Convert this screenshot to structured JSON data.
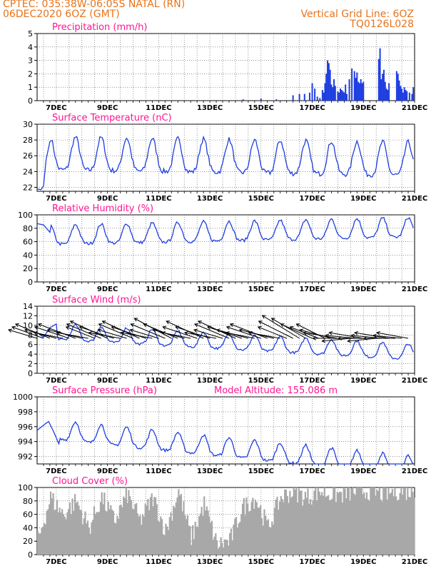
{
  "header": {
    "line1": "CPTEC:   035:38W-06:05S   NATAL (RN)",
    "line2": "06DEC2020 6OZ (GMT)",
    "right1": "Vertical Grid Line: 6OZ",
    "right2": "TQ0126L028"
  },
  "colors": {
    "header": "#e8731a",
    "title": "#ff1493",
    "series": "#1f3ee0",
    "cloud": "#a8a8a8",
    "arrow": "#000000"
  },
  "chart_data": [
    {
      "type": "bar",
      "title": "Precipitation (mm/h)",
      "ylim": [
        0,
        5
      ],
      "yticks": [
        "0",
        "1",
        "2",
        "3",
        "4",
        "5"
      ],
      "xlim": [
        6.25,
        21
      ],
      "xticks": [
        7,
        9,
        11,
        13,
        15,
        17,
        19,
        21
      ],
      "xticklabels": [
        "7DEC",
        "9DEC",
        "11DEC",
        "13DEC",
        "15DEC",
        "17DEC",
        "19DEC",
        "21DEC"
      ],
      "series": [
        {
          "x": [
            14.3,
            15.0,
            15.6,
            16.25,
            16.5,
            16.7,
            16.9,
            17.0,
            17.1,
            17.2,
            17.3,
            17.4,
            17.45,
            17.5,
            17.55,
            17.6,
            17.65,
            17.7,
            17.75,
            17.8,
            17.85,
            17.9,
            18.0,
            18.05,
            18.1,
            18.15,
            18.2,
            18.25,
            18.3,
            18.35,
            18.45,
            18.55,
            18.65,
            18.7,
            18.75,
            18.8,
            18.85,
            18.9,
            18.95,
            19.0,
            19.6,
            19.65,
            19.7,
            19.75,
            19.8,
            19.85,
            19.9,
            19.95,
            20.0,
            20.3,
            20.35,
            20.4,
            20.45,
            20.5,
            20.55,
            20.6,
            20.65,
            20.7,
            20.8,
            20.9,
            20.95
          ],
          "values": [
            0.1,
            0.15,
            0.1,
            0.4,
            0.5,
            0.5,
            0.6,
            1.3,
            0.9,
            0.3,
            0.2,
            0.8,
            0.6,
            1.3,
            2.0,
            3.0,
            2.8,
            2.3,
            1.2,
            1.0,
            1.6,
            1.1,
            0.7,
            0.6,
            0.9,
            0.8,
            0.7,
            0.6,
            1.2,
            0.5,
            1.6,
            2.4,
            2.2,
            1.7,
            2.1,
            1.4,
            1.3,
            1.6,
            1.3,
            1.4,
            3.1,
            3.9,
            1.6,
            2.0,
            2.3,
            1.4,
            0.9,
            0.8,
            1.3,
            2.2,
            2.0,
            1.5,
            1.1,
            0.9,
            0.6,
            1.0,
            0.8,
            0.7,
            0.6,
            0.5,
            1.0
          ]
        }
      ]
    },
    {
      "type": "line",
      "title": "Surface Temperature (nC)",
      "ylim": [
        21.5,
        30
      ],
      "yticks": [
        "22",
        "24",
        "26",
        "28",
        "30"
      ],
      "ytickvals": [
        22,
        24,
        26,
        28,
        30
      ],
      "xlim": [
        6.25,
        21
      ],
      "xticks": [
        7,
        9,
        11,
        13,
        15,
        17,
        19,
        21
      ],
      "xticklabels": [
        "7DEC",
        "9DEC",
        "11DEC",
        "13DEC",
        "15DEC",
        "17DEC",
        "19DEC",
        "21DEC"
      ],
      "series": [
        {
          "base": 25.8,
          "amp": 2.6,
          "trend": -0.05,
          "x": [
            6.25,
            6.4,
            6.5,
            6.6,
            6.75
          ],
          "values": [
            21.8,
            21.7,
            22.2,
            25.5,
            27.8
          ]
        }
      ]
    },
    {
      "type": "line",
      "title": "Relative Humidity (%)",
      "ylim": [
        0,
        100
      ],
      "yticks": [
        "0",
        "20",
        "40",
        "60",
        "80",
        "100"
      ],
      "ytickvals": [
        0,
        20,
        40,
        60,
        80,
        100
      ],
      "xlim": [
        6.25,
        21
      ],
      "xticks": [
        7,
        9,
        11,
        13,
        15,
        17,
        19,
        21
      ],
      "xticklabels": [
        "7DEC",
        "9DEC",
        "11DEC",
        "13DEC",
        "15DEC",
        "17DEC",
        "19DEC",
        "21DEC"
      ],
      "series": [
        {
          "base": 67,
          "amp": 18,
          "trend": 0.8,
          "x": [
            6.25,
            6.5,
            6.75
          ],
          "values": [
            87,
            85,
            74
          ]
        }
      ]
    },
    {
      "type": "line",
      "title": "Surface Wind (m/s)",
      "ylim": [
        0,
        14
      ],
      "yticks": [
        "0",
        "2",
        "4",
        "6",
        "8",
        "10",
        "12",
        "14"
      ],
      "ytickvals": [
        0,
        2,
        4,
        6,
        8,
        10,
        12,
        14
      ],
      "xlim": [
        6.25,
        21
      ],
      "xticks": [
        7,
        9,
        11,
        13,
        15,
        17,
        19,
        21
      ],
      "xticklabels": [
        "7DEC",
        "9DEC",
        "11DEC",
        "13DEC",
        "15DEC",
        "17DEC",
        "19DEC",
        "21DEC"
      ],
      "series": [
        {
          "base": 8.3,
          "amp": 2.0,
          "trend": -0.3,
          "x": [
            6.25,
            6.5,
            6.75,
            7.0
          ],
          "values": [
            8.5,
            7.5,
            9.5,
            10.3
          ]
        }
      ],
      "vectors": {
        "start": 6.25,
        "step": 0.25,
        "u": [
          -1.0,
          -1.1,
          -1.2,
          -1.1,
          -1.0,
          -1.2,
          -1.3,
          -1.2,
          -1.1,
          -1.0,
          -1.2,
          -1.3,
          -1.2,
          -1.1,
          -1.0,
          -1.2,
          -1.3,
          -1.2,
          -1.1,
          -1.0,
          -1.2,
          -1.3,
          -1.2,
          -1.1,
          -1.0,
          -1.2,
          -1.3,
          -1.2,
          -1.1,
          -1.0,
          -1.2,
          -1.3,
          -1.2,
          -1.1,
          -1.0,
          -1.2,
          -1.3,
          -1.2,
          -1.1,
          -1.0,
          -1.2,
          -1.3,
          -1.2,
          -1.1,
          -1.0,
          -1.0,
          -1.1,
          -1.2,
          -1.1,
          -1.0,
          -1.1,
          -1.2,
          -1.1,
          -1.0,
          -1.1,
          -1.2,
          -1.1,
          -1.0,
          -1.1
        ],
        "v": [
          0.3,
          0.4,
          0.5,
          0.3,
          0.2,
          0.4,
          0.5,
          0.3,
          0.2,
          0.4,
          0.5,
          0.6,
          0.4,
          0.2,
          0.3,
          0.5,
          0.6,
          0.4,
          0.2,
          0.3,
          0.5,
          0.7,
          0.5,
          0.3,
          0.2,
          0.4,
          0.6,
          0.4,
          0.2,
          0.3,
          0.5,
          0.6,
          0.4,
          0.3,
          0.2,
          0.4,
          0.5,
          0.3,
          0.2,
          0.4,
          0.6,
          0.8,
          0.7,
          0.5,
          0.4,
          0.5,
          0.3,
          0.2,
          0.0,
          -0.1,
          0.1,
          0.2,
          0.0,
          -0.1,
          0.1,
          0.2,
          0.0,
          0.1,
          0.2
        ]
      }
    },
    {
      "type": "line",
      "title": "Surface Pressure (hPa)",
      "subtitle": "Model Altitude: 155.086 m",
      "ylim": [
        991,
        1000
      ],
      "yticks": [
        "992",
        "994",
        "996",
        "998",
        "1000"
      ],
      "ytickvals": [
        992,
        994,
        996,
        998,
        1000
      ],
      "xlim": [
        6.25,
        21
      ],
      "xticks": [
        7,
        9,
        11,
        13,
        15,
        17,
        19,
        21
      ],
      "xticklabels": [
        "7DEC",
        "9DEC",
        "11DEC",
        "13DEC",
        "15DEC",
        "17DEC",
        "19DEC",
        "21DEC"
      ],
      "series": [
        {
          "base": 995.3,
          "amp": 1.6,
          "trend": -0.35,
          "x": [
            6.25,
            6.5,
            6.7,
            6.9,
            7.1
          ],
          "values": [
            995.5,
            996.2,
            996.7,
            995.3,
            993.7
          ]
        }
      ]
    },
    {
      "type": "bar",
      "title": "Cloud Cover (%)",
      "ylim": [
        0,
        100
      ],
      "yticks": [
        "0",
        "20",
        "40",
        "60",
        "80",
        "100"
      ],
      "ytickvals": [
        0,
        20,
        40,
        60,
        80,
        100
      ],
      "xlim": [
        6.25,
        21
      ],
      "xticks": [
        7,
        9,
        11,
        13,
        15,
        17,
        19,
        21
      ],
      "xticklabels": [
        "7DEC",
        "9DEC",
        "11DEC",
        "13DEC",
        "15DEC",
        "17DEC",
        "19DEC",
        "21DEC"
      ],
      "series": [
        {
          "x": [
            6.25,
            6.75,
            7.25,
            7.75,
            8.25,
            8.75,
            9.25,
            9.75,
            10.25,
            10.75,
            11.25,
            11.75,
            12.25,
            12.75,
            13.25,
            13.75,
            14.25,
            14.75,
            15.25,
            15.75,
            16.25,
            16.75,
            17.25,
            17.75,
            18.25,
            18.75,
            19.25,
            19.75,
            20.25,
            20.75
          ],
          "values": [
            20,
            85,
            60,
            80,
            40,
            85,
            50,
            90,
            50,
            85,
            35,
            95,
            25,
            75,
            15,
            20,
            70,
            85,
            40,
            85,
            95,
            85,
            95,
            90,
            90,
            95,
            95,
            90,
            95,
            95
          ]
        }
      ]
    }
  ]
}
